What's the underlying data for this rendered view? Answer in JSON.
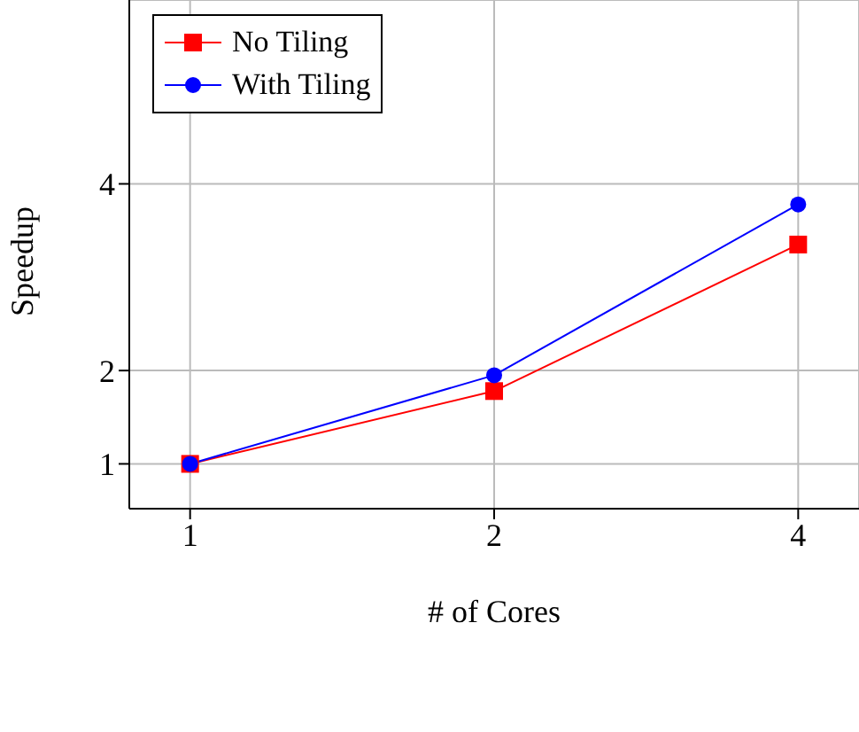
{
  "chart_data": {
    "type": "line",
    "xlabel": "# of Cores",
    "ylabel": "Speedup",
    "categories": [
      "1",
      "2",
      "4"
    ],
    "series": [
      {
        "name": "No Tiling",
        "color": "#ff0000",
        "marker": "square",
        "values": [
          1,
          1.78,
          3.35
        ]
      },
      {
        "name": "With Tiling",
        "color": "#0000ff",
        "marker": "circle",
        "values": [
          1,
          1.95,
          3.78
        ]
      }
    ],
    "ylim": [
      0.52,
      5.97
    ],
    "yticks": [
      1,
      2,
      4
    ],
    "grid": true,
    "legend": "top left"
  }
}
